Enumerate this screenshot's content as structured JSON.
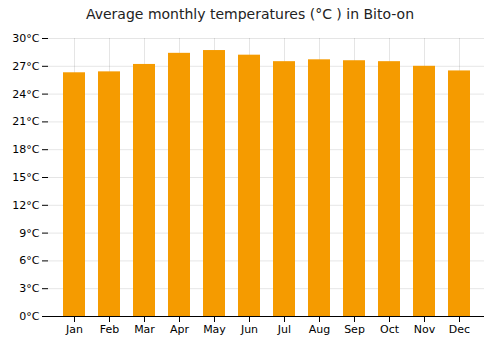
{
  "chart_data": {
    "type": "bar",
    "title": "Average monthly temperatures (°C ) in Bito-on",
    "categories": [
      "Jan",
      "Feb",
      "Mar",
      "Apr",
      "May",
      "Jun",
      "Jul",
      "Aug",
      "Sep",
      "Oct",
      "Nov",
      "Dec"
    ],
    "values": [
      26.3,
      26.4,
      27.2,
      28.4,
      28.7,
      28.2,
      27.5,
      27.7,
      27.6,
      27.5,
      27.0,
      26.5
    ],
    "color": "#F59B00",
    "ylim": [
      0,
      30
    ],
    "yticks": [
      {
        "value": 0,
        "label": "0°C"
      },
      {
        "value": 3,
        "label": "3°C"
      },
      {
        "value": 6,
        "label": "6°C"
      },
      {
        "value": 9,
        "label": "9°C"
      },
      {
        "value": 12,
        "label": "12°C"
      },
      {
        "value": 15,
        "label": "15°C"
      },
      {
        "value": 18,
        "label": "18°C"
      },
      {
        "value": 21,
        "label": "21°C"
      },
      {
        "value": 24,
        "label": "24°C"
      },
      {
        "value": 27,
        "label": "27°C"
      },
      {
        "value": 30,
        "label": "30°C"
      }
    ],
    "grid": true
  }
}
